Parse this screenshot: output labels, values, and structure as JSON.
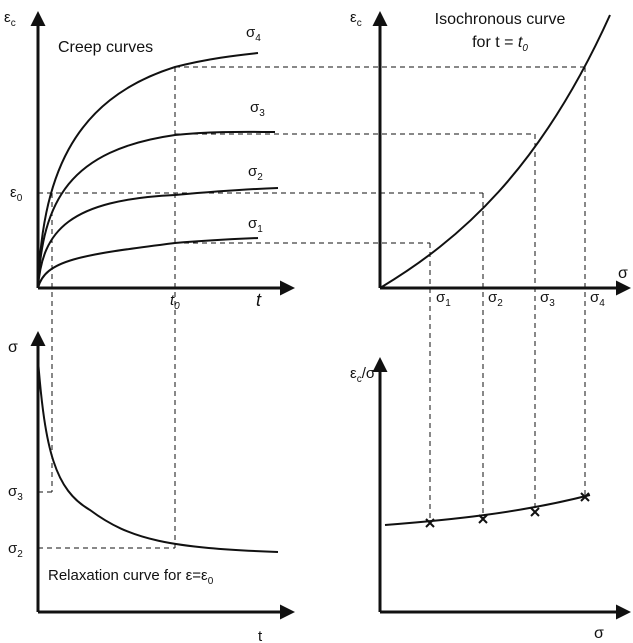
{
  "panels": {
    "creep": {
      "y_label": {
        "symbol": "ε",
        "subscript": "c"
      },
      "title": "Creep curves",
      "curve_labels": [
        {
          "symbol": "σ",
          "subscript": "4"
        },
        {
          "symbol": "σ",
          "subscript": "3"
        },
        {
          "symbol": "σ",
          "subscript": "2"
        },
        {
          "symbol": "σ",
          "subscript": "1"
        }
      ],
      "y_mark": {
        "symbol": "ε",
        "subscript": "0"
      },
      "x_mark": {
        "symbol": "t",
        "subscript": "0"
      },
      "x_label": "t"
    },
    "isochronous": {
      "y_label": {
        "symbol": "ε",
        "subscript": "c"
      },
      "title": "Isochronous curve",
      "subtitle": {
        "text": "for t = ",
        "symbol": "t",
        "subscript": "0"
      },
      "x_label": "σ",
      "x_marks": [
        {
          "symbol": "σ",
          "subscript": "1"
        },
        {
          "symbol": "σ",
          "subscript": "2"
        },
        {
          "symbol": "σ",
          "subscript": "3"
        },
        {
          "symbol": "σ",
          "subscript": "4"
        }
      ]
    },
    "relaxation": {
      "y_label": "σ",
      "y_marks": [
        {
          "symbol": "σ",
          "subscript": "3"
        },
        {
          "symbol": "σ",
          "subscript": "2"
        }
      ],
      "caption": {
        "text": "Relaxation curve for ε=ε",
        "subscript": "0"
      },
      "x_label": "t"
    },
    "ratio": {
      "y_label": {
        "symbol": "ε",
        "subscript": "c",
        "suffix": "/σ"
      },
      "x_label": "σ"
    }
  }
}
